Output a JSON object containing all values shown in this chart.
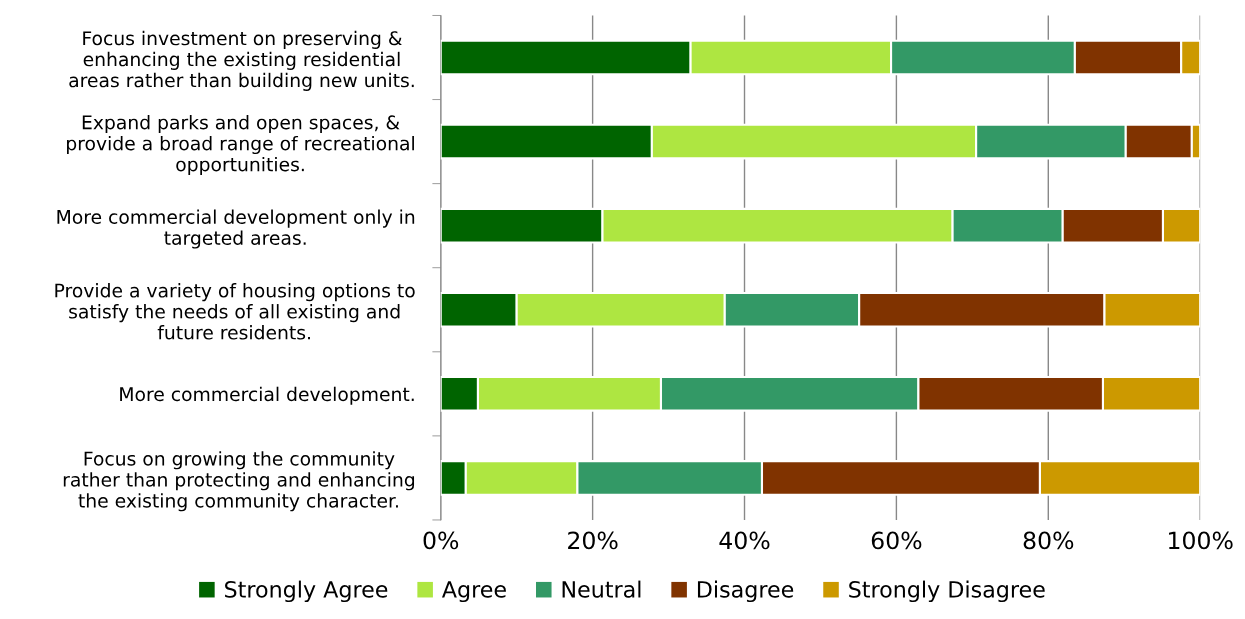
{
  "chart_data": {
    "type": "bar",
    "orientation": "horizontal",
    "stacked": true,
    "categories": [
      "Focus investment on preserving &\nenhancing the existing residential\nareas rather than building new units.",
      "Expand parks and open spaces, &\nprovide a broad range of recreational\nopportunities.",
      "More commercial development only in\ntargeted areas.",
      "Provide a variety of housing options to\nsatisfy the needs of all existing and\nfuture residents.",
      "More commercial development.",
      "Focus on growing the community\nrather than protecting and enhancing\nthe existing community character."
    ],
    "series": [
      {
        "name": "Strongly Agree",
        "color": "#006400",
        "values": [
          32.9,
          27.8,
          21.3,
          10.0,
          4.9,
          3.3
        ]
      },
      {
        "name": "Agree",
        "color": "#aee641",
        "values": [
          26.4,
          42.7,
          46.1,
          27.4,
          24.1,
          14.7
        ]
      },
      {
        "name": "Neutral",
        "color": "#339966",
        "values": [
          24.2,
          19.7,
          14.5,
          17.7,
          33.9,
          24.3
        ]
      },
      {
        "name": "Disagree",
        "color": "#803300",
        "values": [
          14.0,
          8.7,
          13.2,
          32.3,
          24.3,
          36.6
        ]
      },
      {
        "name": "Strongly Disagree",
        "color": "#cc9900",
        "values": [
          2.5,
          1.1,
          4.9,
          12.6,
          12.8,
          21.1
        ]
      }
    ],
    "xlim": [
      0,
      100
    ],
    "xticks": [
      {
        "value": 0,
        "label": "0%"
      },
      {
        "value": 20,
        "label": "20%"
      },
      {
        "value": 40,
        "label": "40%"
      },
      {
        "value": 60,
        "label": "60%"
      },
      {
        "value": 80,
        "label": "80%"
      },
      {
        "value": 100,
        "label": "100%"
      }
    ],
    "grid": "x",
    "legend": "bottom"
  }
}
